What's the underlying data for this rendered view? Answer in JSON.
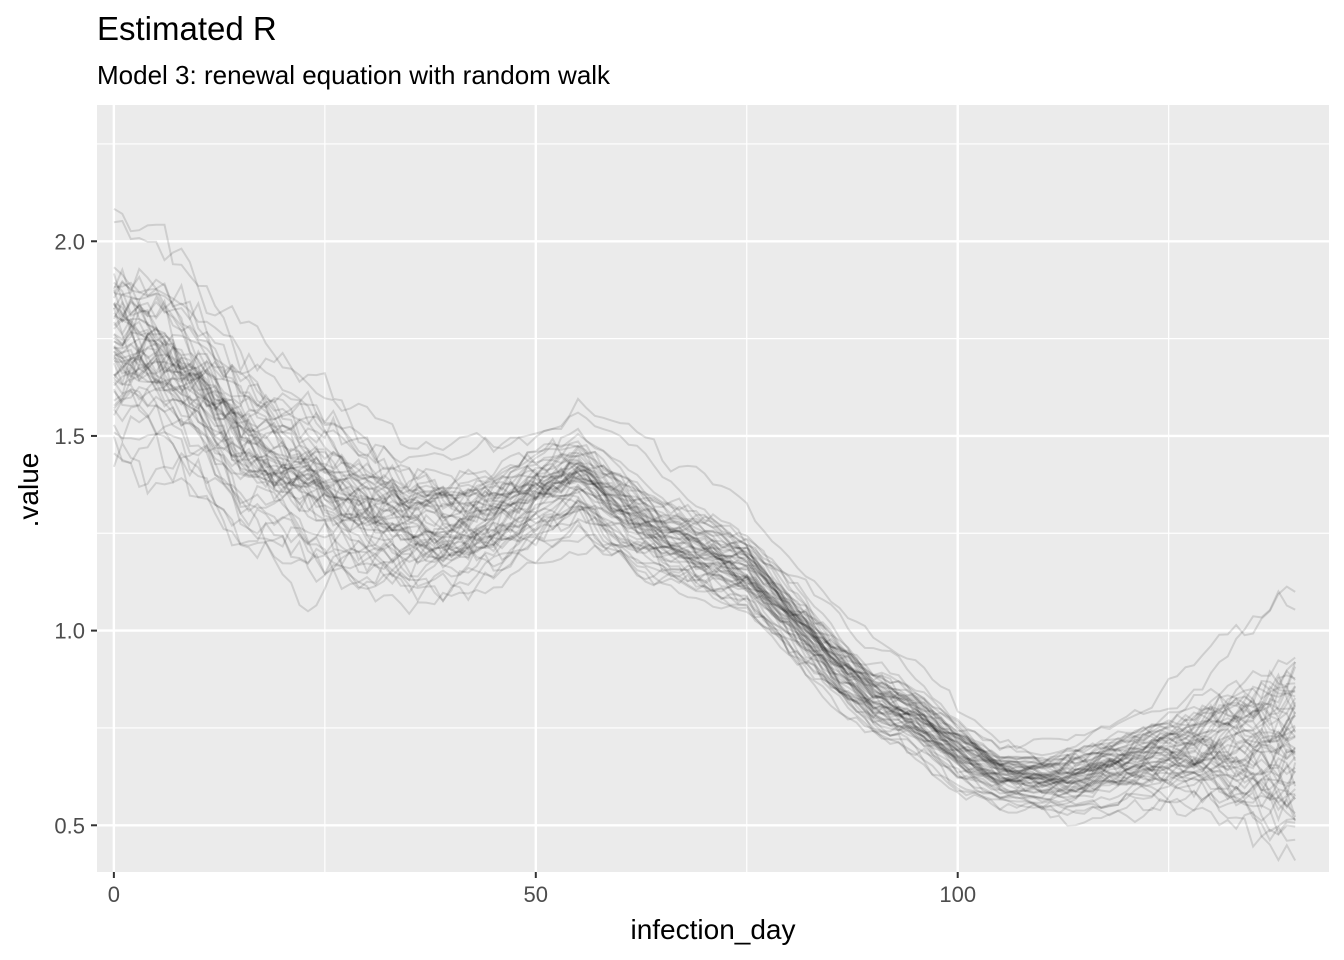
{
  "chart_data": {
    "type": "line",
    "title": "Estimated R",
    "subtitle": "Model 3: renewal equation with random walk",
    "xlabel": "infection_day",
    "ylabel": ".value",
    "xlim": [
      -2,
      144
    ],
    "ylim": [
      0.38,
      2.35
    ],
    "x_ticks": [
      0,
      50,
      100
    ],
    "x_tick_labels": [
      "0",
      "50",
      "100"
    ],
    "y_ticks": [
      0.5,
      1.0,
      1.5,
      2.0
    ],
    "y_tick_labels": [
      "0.5",
      "1.0",
      "1.5",
      "2.0"
    ],
    "grid": true,
    "line_color": "#000000",
    "line_alpha": 0.12,
    "n_draws": 60,
    "x_range": [
      0,
      140
    ],
    "central_trend": {
      "x": [
        0,
        5,
        10,
        15,
        20,
        25,
        30,
        35,
        40,
        45,
        50,
        55,
        60,
        65,
        70,
        75,
        80,
        85,
        90,
        95,
        100,
        105,
        110,
        115,
        120,
        125,
        130,
        135,
        140
      ],
      "y": [
        1.74,
        1.71,
        1.61,
        1.49,
        1.42,
        1.36,
        1.31,
        1.27,
        1.27,
        1.3,
        1.36,
        1.4,
        1.32,
        1.25,
        1.21,
        1.16,
        1.04,
        0.93,
        0.83,
        0.78,
        0.69,
        0.63,
        0.62,
        0.63,
        0.66,
        0.69,
        0.71,
        0.72,
        0.72
      ]
    },
    "spread": {
      "x": [
        0,
        10,
        20,
        30,
        40,
        50,
        60,
        70,
        80,
        90,
        100,
        105,
        110,
        120,
        130,
        140
      ],
      "sd": [
        0.12,
        0.1,
        0.09,
        0.08,
        0.07,
        0.06,
        0.05,
        0.045,
        0.04,
        0.04,
        0.035,
        0.03,
        0.03,
        0.045,
        0.07,
        0.12
      ]
    }
  }
}
